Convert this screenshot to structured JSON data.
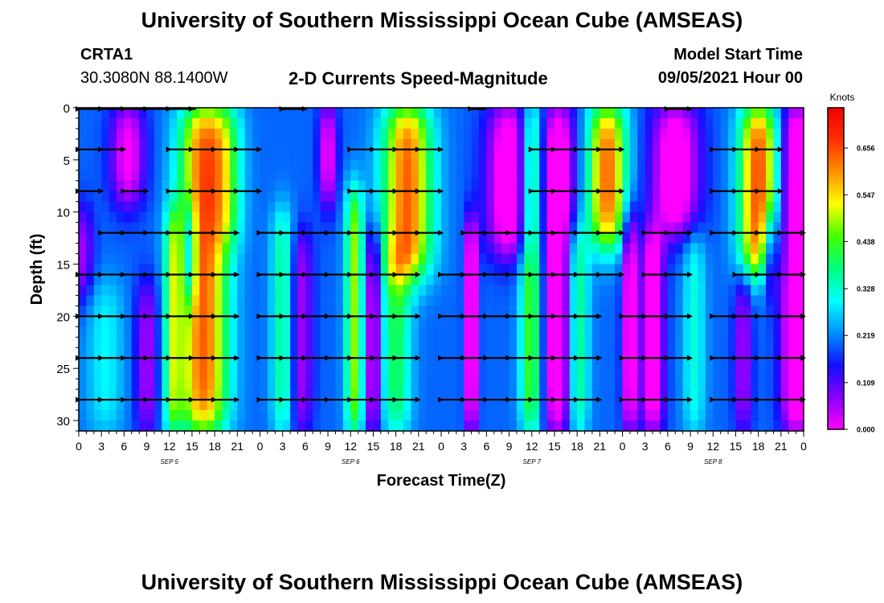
{
  "page": {
    "title": "University of Southern Mississippi Ocean Cube (AMSEAS)",
    "footer_title": "University of Southern Mississippi Ocean Cube (AMSEAS)",
    "station": "CRTA1",
    "location": "30.3080N  88.1400W",
    "subtitle": "2-D Currents Speed-Magnitude",
    "start_label": "Model Start Time",
    "start_value": "09/05/2021 Hour 00"
  },
  "colors": {
    "scale": [
      "#ff00ff",
      "#8800ff",
      "#1010ff",
      "#0090ff",
      "#00ffff",
      "#00ff80",
      "#40ff00",
      "#ffff00",
      "#ff9000",
      "#ff3000",
      "#ee0000"
    ]
  },
  "chart_data": {
    "type": "heatmap",
    "title": "2-D Currents Speed-Magnitude",
    "xlabel": "Forecast Time(Z)",
    "ylabel": "Depth (ft)",
    "ylim": [
      31,
      0
    ],
    "xlim": [
      0,
      96
    ],
    "y_ticks": [
      0,
      5,
      10,
      15,
      20,
      25,
      30
    ],
    "x_ticks": [
      0,
      3,
      6,
      9,
      12,
      15,
      18,
      21,
      24,
      27,
      30,
      33,
      36,
      39,
      42,
      45,
      48,
      51,
      54,
      57,
      60,
      63,
      66,
      69,
      72,
      75,
      78,
      81,
      84,
      87,
      90,
      93,
      96
    ],
    "x_tick_labels": [
      "0",
      "3",
      "6",
      "9",
      "12",
      "15",
      "18",
      "21",
      "0",
      "3",
      "6",
      "9",
      "12",
      "15",
      "18",
      "21",
      "0",
      "3",
      "6",
      "9",
      "12",
      "15",
      "18",
      "21",
      "0",
      "3",
      "6",
      "9",
      "12",
      "15",
      "18",
      "21",
      "0"
    ],
    "day_labels": [
      {
        "x": 12,
        "label": "SEP 5"
      },
      {
        "x": 36,
        "label": "SEP 6"
      },
      {
        "x": 60,
        "label": "SEP 7"
      },
      {
        "x": 84,
        "label": "SEP 8"
      }
    ],
    "colorbar": {
      "units": "Knots",
      "min": 0.0,
      "max": 0.75,
      "tick_values": [
        0.0,
        0.109,
        0.219,
        0.328,
        0.438,
        0.547,
        0.656
      ],
      "tick_labels": [
        "0.000",
        "0.109",
        "0.219",
        "0.328",
        "0.438",
        "0.547",
        "0.656"
      ]
    },
    "vector_depths": [
      0,
      4,
      8,
      12,
      16,
      20,
      24,
      28
    ],
    "vector_segments": [
      {
        "depth": 0,
        "start": 0,
        "end": 15.5
      },
      {
        "depth": 0,
        "start": 27,
        "end": 30
      },
      {
        "depth": 0,
        "start": 52,
        "end": 54
      },
      {
        "depth": 0,
        "start": 78,
        "end": 81
      },
      {
        "depth": 4,
        "start": 0,
        "end": 6
      },
      {
        "depth": 4,
        "start": 12,
        "end": 24
      },
      {
        "depth": 4,
        "start": 36,
        "end": 48
      },
      {
        "depth": 4,
        "start": 60,
        "end": 72
      },
      {
        "depth": 4,
        "start": 84,
        "end": 93
      },
      {
        "depth": 8,
        "start": 0,
        "end": 3
      },
      {
        "depth": 8,
        "start": 6,
        "end": 9
      },
      {
        "depth": 8,
        "start": 12,
        "end": 24
      },
      {
        "depth": 8,
        "start": 36,
        "end": 48
      },
      {
        "depth": 8,
        "start": 60,
        "end": 72
      },
      {
        "depth": 8,
        "start": 84,
        "end": 93
      },
      {
        "depth": 12,
        "start": 3,
        "end": 21
      },
      {
        "depth": 12,
        "start": 24,
        "end": 48
      },
      {
        "depth": 12,
        "start": 51,
        "end": 72
      },
      {
        "depth": 12,
        "start": 75,
        "end": 81
      },
      {
        "depth": 12,
        "start": 84,
        "end": 96
      },
      {
        "depth": 16,
        "start": 0,
        "end": 21
      },
      {
        "depth": 16,
        "start": 24,
        "end": 45
      },
      {
        "depth": 16,
        "start": 48,
        "end": 72
      },
      {
        "depth": 16,
        "start": 75,
        "end": 81
      },
      {
        "depth": 16,
        "start": 87,
        "end": 96
      },
      {
        "depth": 20,
        "start": 0,
        "end": 21
      },
      {
        "depth": 20,
        "start": 24,
        "end": 45
      },
      {
        "depth": 20,
        "start": 48,
        "end": 69
      },
      {
        "depth": 20,
        "start": 72,
        "end": 81
      },
      {
        "depth": 20,
        "start": 84,
        "end": 96
      },
      {
        "depth": 24,
        "start": 0,
        "end": 21
      },
      {
        "depth": 24,
        "start": 24,
        "end": 45
      },
      {
        "depth": 24,
        "start": 48,
        "end": 69
      },
      {
        "depth": 24,
        "start": 72,
        "end": 81
      },
      {
        "depth": 24,
        "start": 84,
        "end": 96
      },
      {
        "depth": 28,
        "start": 0,
        "end": 21
      },
      {
        "depth": 28,
        "start": 24,
        "end": 45
      },
      {
        "depth": 28,
        "start": 48,
        "end": 69
      },
      {
        "depth": 28,
        "start": 72,
        "end": 81
      },
      {
        "depth": 28,
        "start": 84,
        "end": 96
      }
    ],
    "speed_features": [
      {
        "t": 16.5,
        "width": 3.2,
        "amp": 0.44,
        "top": 0,
        "bottom": 31
      },
      {
        "t": 19.5,
        "width": 2.2,
        "amp": 0.16,
        "top": 0,
        "bottom": 13
      },
      {
        "t": 6.5,
        "width": 2.3,
        "amp": -0.22,
        "top": 0,
        "bottom": 9
      },
      {
        "t": 12.5,
        "width": 1.2,
        "amp": 0.22,
        "top": 10,
        "bottom": 31
      },
      {
        "t": 14.8,
        "width": 0.8,
        "amp": -0.24,
        "top": 10,
        "bottom": 18
      },
      {
        "t": 3.5,
        "width": 2.5,
        "amp": 0.1,
        "top": 17,
        "bottom": 31
      },
      {
        "t": 9,
        "width": 1.5,
        "amp": -0.15,
        "top": 17,
        "bottom": 31
      },
      {
        "t": 43.5,
        "width": 3.2,
        "amp": 0.44,
        "top": 0,
        "bottom": 16
      },
      {
        "t": 42,
        "width": 2.0,
        "amp": 0.2,
        "top": 14,
        "bottom": 31
      },
      {
        "t": 36.5,
        "width": 1.2,
        "amp": 0.28,
        "top": 8,
        "bottom": 31
      },
      {
        "t": 39,
        "width": 1.0,
        "amp": -0.22,
        "top": 12,
        "bottom": 31
      },
      {
        "t": 27,
        "width": 1.5,
        "amp": 0.17,
        "top": 10,
        "bottom": 31
      },
      {
        "t": 29.5,
        "width": 1.5,
        "amp": -0.15,
        "top": 12,
        "bottom": 31
      },
      {
        "t": 33,
        "width": 1.2,
        "amp": -0.22,
        "top": 0,
        "bottom": 9
      },
      {
        "t": 57,
        "width": 3.0,
        "amp": -0.26,
        "top": 0,
        "bottom": 14
      },
      {
        "t": 52,
        "width": 0.8,
        "amp": -0.28,
        "top": 11,
        "bottom": 31
      },
      {
        "t": 60,
        "width": 1.5,
        "amp": 0.26,
        "top": 0,
        "bottom": 31
      },
      {
        "t": 63.5,
        "width": 2.2,
        "amp": -0.26,
        "top": 0,
        "bottom": 31
      },
      {
        "t": 70,
        "width": 2.5,
        "amp": 0.44,
        "top": 0,
        "bottom": 13
      },
      {
        "t": 66,
        "width": 1.5,
        "amp": 0.22,
        "top": 12,
        "bottom": 31
      },
      {
        "t": 73,
        "width": 1.0,
        "amp": -0.24,
        "top": 10,
        "bottom": 31
      },
      {
        "t": 79,
        "width": 3.2,
        "amp": -0.26,
        "top": 0,
        "bottom": 12
      },
      {
        "t": 76,
        "width": 1.5,
        "amp": -0.25,
        "top": 12,
        "bottom": 31
      },
      {
        "t": 81.5,
        "width": 1.5,
        "amp": 0.12,
        "top": 12,
        "bottom": 31
      },
      {
        "t": 90,
        "width": 2.5,
        "amp": 0.46,
        "top": 0,
        "bottom": 16
      },
      {
        "t": 91.5,
        "width": 1.2,
        "amp": -0.28,
        "top": 11,
        "bottom": 17
      },
      {
        "t": 88,
        "width": 1.2,
        "amp": -0.15,
        "top": 16,
        "bottom": 31
      },
      {
        "t": 95,
        "width": 2.0,
        "amp": -0.28,
        "top": 0,
        "bottom": 31
      },
      {
        "t": 0.5,
        "width": 1.5,
        "amp": -0.15,
        "top": 10,
        "bottom": 18
      }
    ],
    "base_speed": 0.2
  }
}
